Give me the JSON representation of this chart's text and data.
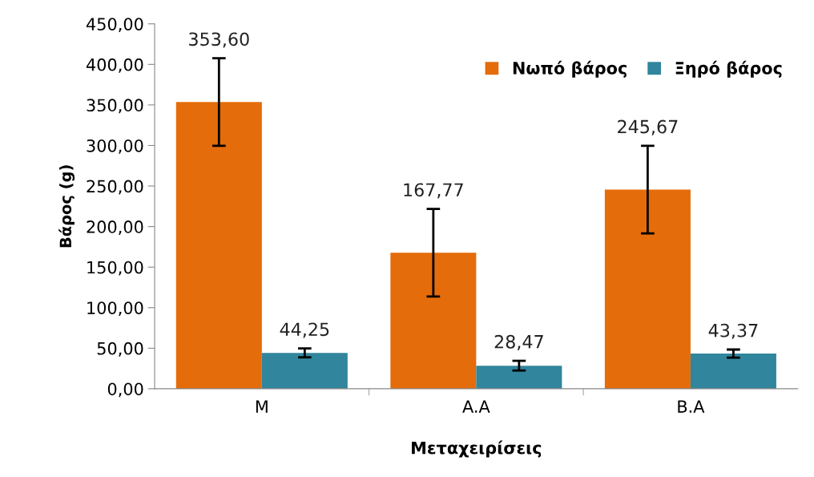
{
  "chart_data": {
    "type": "bar",
    "xlabel": "Μεταχειρίσεις",
    "ylabel": "Βάρος (g)",
    "categories": [
      "M",
      "A.A",
      "B.A"
    ],
    "series": [
      {
        "name": "Νωπό βάρος",
        "color": "#e46c0a",
        "values": [
          353.6,
          167.77,
          245.67
        ],
        "errors": [
          54,
          54,
          54
        ]
      },
      {
        "name": "Ξηρό βάρος",
        "color": "#31859c",
        "values": [
          44.25,
          28.47,
          43.37
        ],
        "errors": [
          5.5,
          6,
          5
        ]
      }
    ],
    "ylim": [
      0,
      450
    ],
    "yticks": [
      {
        "value": 0,
        "label": "0,00"
      },
      {
        "value": 50,
        "label": "50,00"
      },
      {
        "value": 100,
        "label": "100,00"
      },
      {
        "value": 150,
        "label": "150,00"
      },
      {
        "value": 200,
        "label": "200,00"
      },
      {
        "value": 250,
        "label": "250,00"
      },
      {
        "value": 300,
        "label": "300,00"
      },
      {
        "value": 350,
        "label": "350,00"
      },
      {
        "value": 400,
        "label": "400,00"
      },
      {
        "value": 450,
        "label": "450,00"
      }
    ],
    "value_labels": [
      [
        "353,60",
        "167,77",
        "245,67"
      ],
      [
        "44,25",
        "28,47",
        "43,37"
      ]
    ],
    "grid": false,
    "legend": "top right"
  }
}
